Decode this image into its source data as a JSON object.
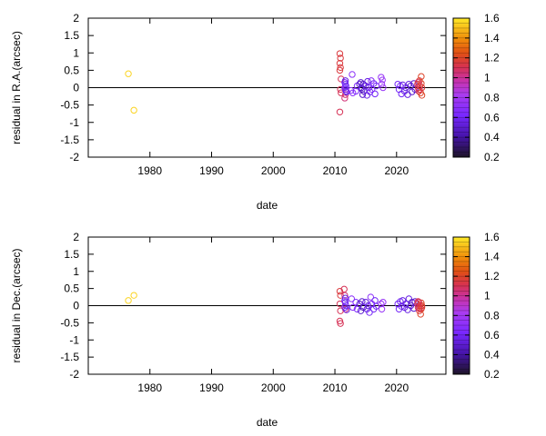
{
  "chart_data": [
    {
      "type": "scatter",
      "title": "",
      "xlabel": "date",
      "ylabel": "residual in R.A.(arcsec)",
      "xlim": [
        1970,
        2028
      ],
      "ylim": [
        -2,
        2
      ],
      "xticks": [
        1980,
        1990,
        2000,
        2010,
        2020
      ],
      "xtick_labels": [
        "1980",
        "1990",
        "2000",
        "2010",
        "2020"
      ],
      "yticks": [
        -2,
        -1.5,
        -1,
        -0.5,
        0,
        0.5,
        1,
        1.5,
        2
      ],
      "ytick_labels": [
        "-2",
        "-1.5",
        "-1",
        "-0.5",
        "0",
        "0.5",
        "1",
        "1.5",
        "2"
      ],
      "zero_line": true,
      "grid": false,
      "marker": "open-circle",
      "colorbar": {
        "range": [
          0.2,
          1.6
        ],
        "ticks": [
          0.2,
          0.4,
          0.6,
          0.8,
          1,
          1.2,
          1.4,
          1.6
        ],
        "tick_labels": [
          "0.2",
          "0.4",
          "0.6",
          "0.8",
          "1",
          "1.2",
          "1.4",
          "1.6"
        ]
      },
      "points": [
        {
          "x": 1976.5,
          "y": 0.4,
          "c": 1.55
        },
        {
          "x": 1977.4,
          "y": -0.65,
          "c": 1.55
        },
        {
          "x": 2010.8,
          "y": 0.98,
          "c": 1.15
        },
        {
          "x": 2010.9,
          "y": 0.85,
          "c": 1.15
        },
        {
          "x": 2010.8,
          "y": 0.7,
          "c": 1.15
        },
        {
          "x": 2010.9,
          "y": 0.58,
          "c": 1.15
        },
        {
          "x": 2010.8,
          "y": 0.5,
          "c": 1.15
        },
        {
          "x": 2011.0,
          "y": 0.25,
          "c": 1.1
        },
        {
          "x": 2010.9,
          "y": -0.05,
          "c": 1.1
        },
        {
          "x": 2011.0,
          "y": -0.15,
          "c": 1.1
        },
        {
          "x": 2010.8,
          "y": -0.7,
          "c": 1.1
        },
        {
          "x": 2011.6,
          "y": -0.3,
          "c": 1.05
        },
        {
          "x": 2011.7,
          "y": -0.2,
          "c": 1.05
        },
        {
          "x": 2011.6,
          "y": 0.15,
          "c": 0.6
        },
        {
          "x": 2011.7,
          "y": 0.1,
          "c": 0.6
        },
        {
          "x": 2011.8,
          "y": 0.05,
          "c": 0.6
        },
        {
          "x": 2011.6,
          "y": 0.0,
          "c": 0.6
        },
        {
          "x": 2011.7,
          "y": -0.05,
          "c": 0.6
        },
        {
          "x": 2011.8,
          "y": -0.1,
          "c": 0.6
        },
        {
          "x": 2011.7,
          "y": 0.2,
          "c": 0.55
        },
        {
          "x": 2011.9,
          "y": -0.12,
          "c": 0.55
        },
        {
          "x": 2012.8,
          "y": 0.38,
          "c": 0.7
        },
        {
          "x": 2012.6,
          "y": -0.08,
          "c": 0.7
        },
        {
          "x": 2012.9,
          "y": -0.15,
          "c": 0.7
        },
        {
          "x": 2013.4,
          "y": -0.1,
          "c": 0.65
        },
        {
          "x": 2013.6,
          "y": 0.05,
          "c": 0.65
        },
        {
          "x": 2014.0,
          "y": 0.1,
          "c": 0.5
        },
        {
          "x": 2014.2,
          "y": 0.15,
          "c": 0.5
        },
        {
          "x": 2014.3,
          "y": 0.0,
          "c": 0.5
        },
        {
          "x": 2014.4,
          "y": -0.05,
          "c": 0.5
        },
        {
          "x": 2014.5,
          "y": -0.2,
          "c": 0.5
        },
        {
          "x": 2014.6,
          "y": 0.1,
          "c": 0.45
        },
        {
          "x": 2014.7,
          "y": -0.1,
          "c": 0.45
        },
        {
          "x": 2015.0,
          "y": 0.05,
          "c": 0.55
        },
        {
          "x": 2015.2,
          "y": -0.22,
          "c": 0.55
        },
        {
          "x": 2015.3,
          "y": 0.18,
          "c": 0.55
        },
        {
          "x": 2015.5,
          "y": 0.0,
          "c": 0.6
        },
        {
          "x": 2015.7,
          "y": -0.12,
          "c": 0.6
        },
        {
          "x": 2015.9,
          "y": 0.2,
          "c": 0.7
        },
        {
          "x": 2016.0,
          "y": -0.05,
          "c": 0.7
        },
        {
          "x": 2016.3,
          "y": 0.12,
          "c": 0.6
        },
        {
          "x": 2016.5,
          "y": -0.18,
          "c": 0.6
        },
        {
          "x": 2016.7,
          "y": 0.05,
          "c": 0.6
        },
        {
          "x": 2017.5,
          "y": 0.3,
          "c": 0.75
        },
        {
          "x": 2017.6,
          "y": 0.1,
          "c": 0.75
        },
        {
          "x": 2017.8,
          "y": 0.0,
          "c": 0.75
        },
        {
          "x": 2017.7,
          "y": 0.22,
          "c": 0.75
        },
        {
          "x": 2020.2,
          "y": 0.1,
          "c": 0.6
        },
        {
          "x": 2020.4,
          "y": -0.05,
          "c": 0.6
        },
        {
          "x": 2020.6,
          "y": 0.05,
          "c": 0.6
        },
        {
          "x": 2020.8,
          "y": -0.18,
          "c": 0.6
        },
        {
          "x": 2021.0,
          "y": 0.08,
          "c": 0.55
        },
        {
          "x": 2021.3,
          "y": -0.1,
          "c": 0.55
        },
        {
          "x": 2021.5,
          "y": 0.0,
          "c": 0.55
        },
        {
          "x": 2021.8,
          "y": -0.2,
          "c": 0.55
        },
        {
          "x": 2022.0,
          "y": 0.1,
          "c": 0.55
        },
        {
          "x": 2022.3,
          "y": 0.05,
          "c": 0.5
        },
        {
          "x": 2022.5,
          "y": -0.12,
          "c": 0.5
        },
        {
          "x": 2022.8,
          "y": 0.12,
          "c": 0.5
        },
        {
          "x": 2023.0,
          "y": -0.05,
          "c": 0.5
        },
        {
          "x": 2023.4,
          "y": 0.1,
          "c": 1.1
        },
        {
          "x": 2023.5,
          "y": 0.0,
          "c": 1.1
        },
        {
          "x": 2023.6,
          "y": -0.1,
          "c": 1.1
        },
        {
          "x": 2023.7,
          "y": 0.2,
          "c": 1.15
        },
        {
          "x": 2023.8,
          "y": 0.05,
          "c": 1.15
        },
        {
          "x": 2023.9,
          "y": -0.15,
          "c": 1.2
        },
        {
          "x": 2024.0,
          "y": 0.32,
          "c": 1.2
        },
        {
          "x": 2024.0,
          "y": 0.12,
          "c": 1.2
        },
        {
          "x": 2024.1,
          "y": -0.22,
          "c": 1.2
        },
        {
          "x": 2023.5,
          "y": 0.15,
          "c": 1.1
        },
        {
          "x": 2023.7,
          "y": -0.05,
          "c": 1.1
        },
        {
          "x": 2024.1,
          "y": 0.0,
          "c": 1.15
        }
      ]
    },
    {
      "type": "scatter",
      "title": "",
      "xlabel": "date",
      "ylabel": "residual in Dec.(arcsec)",
      "xlim": [
        1970,
        2028
      ],
      "ylim": [
        -2,
        2
      ],
      "xticks": [
        1980,
        1990,
        2000,
        2010,
        2020
      ],
      "xtick_labels": [
        "1980",
        "1990",
        "2000",
        "2010",
        "2020"
      ],
      "yticks": [
        -2,
        -1.5,
        -1,
        -0.5,
        0,
        0.5,
        1,
        1.5,
        2
      ],
      "ytick_labels": [
        "-2",
        "-1.5",
        "-1",
        "-0.5",
        "0",
        "0.5",
        "1",
        "1.5",
        "2"
      ],
      "zero_line": true,
      "grid": false,
      "marker": "open-circle",
      "colorbar": {
        "range": [
          0.2,
          1.6
        ],
        "ticks": [
          0.2,
          0.4,
          0.6,
          0.8,
          1,
          1.2,
          1.4,
          1.6
        ],
        "tick_labels": [
          "0.2",
          "0.4",
          "0.6",
          "0.8",
          "1",
          "1.2",
          "1.4",
          "1.6"
        ]
      },
      "points": [
        {
          "x": 1976.5,
          "y": 0.15,
          "c": 1.55
        },
        {
          "x": 1977.4,
          "y": 0.3,
          "c": 1.55
        },
        {
          "x": 2010.8,
          "y": 0.42,
          "c": 1.15
        },
        {
          "x": 2010.9,
          "y": 0.3,
          "c": 1.15
        },
        {
          "x": 2010.8,
          "y": 0.05,
          "c": 1.1
        },
        {
          "x": 2010.9,
          "y": -0.15,
          "c": 1.1
        },
        {
          "x": 2010.8,
          "y": -0.45,
          "c": 1.1
        },
        {
          "x": 2010.9,
          "y": -0.52,
          "c": 1.1
        },
        {
          "x": 2011.5,
          "y": 0.48,
          "c": 1.1
        },
        {
          "x": 2011.6,
          "y": 0.3,
          "c": 1.05
        },
        {
          "x": 2011.7,
          "y": -0.1,
          "c": 1.05
        },
        {
          "x": 2011.6,
          "y": 0.15,
          "c": 0.6
        },
        {
          "x": 2011.7,
          "y": 0.1,
          "c": 0.6
        },
        {
          "x": 2011.8,
          "y": 0.0,
          "c": 0.6
        },
        {
          "x": 2011.6,
          "y": -0.05,
          "c": 0.6
        },
        {
          "x": 2011.7,
          "y": 0.22,
          "c": 0.55
        },
        {
          "x": 2011.9,
          "y": -0.12,
          "c": 0.55
        },
        {
          "x": 2012.7,
          "y": 0.2,
          "c": 0.7
        },
        {
          "x": 2012.9,
          "y": -0.05,
          "c": 0.7
        },
        {
          "x": 2013.4,
          "y": 0.1,
          "c": 0.65
        },
        {
          "x": 2013.6,
          "y": -0.1,
          "c": 0.65
        },
        {
          "x": 2014.0,
          "y": 0.05,
          "c": 0.5
        },
        {
          "x": 2014.2,
          "y": -0.15,
          "c": 0.5
        },
        {
          "x": 2014.4,
          "y": 0.12,
          "c": 0.5
        },
        {
          "x": 2014.6,
          "y": -0.05,
          "c": 0.45
        },
        {
          "x": 2015.0,
          "y": 0.1,
          "c": 0.55
        },
        {
          "x": 2015.2,
          "y": -0.1,
          "c": 0.55
        },
        {
          "x": 2015.4,
          "y": 0.0,
          "c": 0.55
        },
        {
          "x": 2015.6,
          "y": -0.2,
          "c": 0.6
        },
        {
          "x": 2015.8,
          "y": 0.25,
          "c": 0.7
        },
        {
          "x": 2016.0,
          "y": 0.05,
          "c": 0.7
        },
        {
          "x": 2016.3,
          "y": -0.1,
          "c": 0.6
        },
        {
          "x": 2016.5,
          "y": 0.15,
          "c": 0.6
        },
        {
          "x": 2016.7,
          "y": -0.02,
          "c": 0.6
        },
        {
          "x": 2017.5,
          "y": 0.05,
          "c": 0.75
        },
        {
          "x": 2017.6,
          "y": -0.1,
          "c": 0.75
        },
        {
          "x": 2017.8,
          "y": 0.1,
          "c": 0.75
        },
        {
          "x": 2020.2,
          "y": 0.05,
          "c": 0.6
        },
        {
          "x": 2020.4,
          "y": -0.1,
          "c": 0.6
        },
        {
          "x": 2020.6,
          "y": 0.12,
          "c": 0.6
        },
        {
          "x": 2020.8,
          "y": -0.02,
          "c": 0.6
        },
        {
          "x": 2021.0,
          "y": 0.15,
          "c": 0.55
        },
        {
          "x": 2021.3,
          "y": -0.05,
          "c": 0.55
        },
        {
          "x": 2021.5,
          "y": 0.05,
          "c": 0.55
        },
        {
          "x": 2021.8,
          "y": -0.12,
          "c": 0.55
        },
        {
          "x": 2022.0,
          "y": 0.2,
          "c": 0.55
        },
        {
          "x": 2022.3,
          "y": 0.0,
          "c": 0.5
        },
        {
          "x": 2022.5,
          "y": 0.1,
          "c": 0.5
        },
        {
          "x": 2022.8,
          "y": -0.08,
          "c": 0.5
        },
        {
          "x": 2023.0,
          "y": 0.12,
          "c": 0.5
        },
        {
          "x": 2023.4,
          "y": 0.05,
          "c": 1.1
        },
        {
          "x": 2023.5,
          "y": -0.05,
          "c": 1.1
        },
        {
          "x": 2023.6,
          "y": 0.1,
          "c": 1.1
        },
        {
          "x": 2023.7,
          "y": -0.15,
          "c": 1.15
        },
        {
          "x": 2023.8,
          "y": 0.0,
          "c": 1.15
        },
        {
          "x": 2023.9,
          "y": -0.25,
          "c": 1.2
        },
        {
          "x": 2024.0,
          "y": 0.08,
          "c": 1.2
        },
        {
          "x": 2024.0,
          "y": -0.1,
          "c": 1.2
        },
        {
          "x": 2024.1,
          "y": 0.0,
          "c": 1.2
        },
        {
          "x": 2023.5,
          "y": 0.12,
          "c": 1.1
        },
        {
          "x": 2023.7,
          "y": -0.08,
          "c": 1.1
        },
        {
          "x": 2024.1,
          "y": -0.05,
          "c": 1.15
        }
      ]
    }
  ]
}
